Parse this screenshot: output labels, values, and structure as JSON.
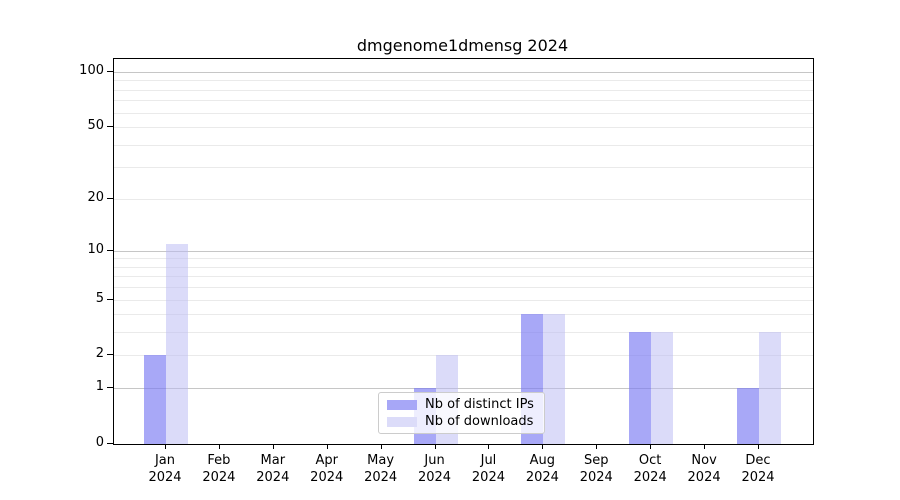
{
  "chart_data": {
    "type": "bar",
    "title": "dmgenome1dmensg 2024",
    "year_label": "2024",
    "categories": [
      "Jan",
      "Feb",
      "Mar",
      "Apr",
      "May",
      "Jun",
      "Jul",
      "Aug",
      "Sep",
      "Oct",
      "Nov",
      "Dec"
    ],
    "series": [
      {
        "name": "Nb of distinct IPs",
        "values": [
          2,
          0,
          0,
          0,
          0,
          1,
          0,
          4,
          0,
          3,
          0,
          1
        ]
      },
      {
        "name": "Nb of downloads",
        "values": [
          11,
          0,
          0,
          0,
          0,
          2,
          0,
          4,
          0,
          3,
          0,
          3
        ]
      }
    ],
    "y_scale": "log1p",
    "ylim": [
      0,
      118
    ],
    "yticks": [
      100,
      50,
      20,
      10,
      5,
      2,
      1,
      0
    ],
    "grid": {
      "major": [
        1,
        10,
        100
      ],
      "minor": [
        2,
        3,
        4,
        5,
        6,
        7,
        8,
        9,
        20,
        30,
        40,
        50,
        60,
        70,
        80,
        90
      ]
    },
    "legend_position": "lower center",
    "colors": {
      "bar_distinct_ips": "rgba(122,122,243,0.65)",
      "bar_downloads": "rgba(184,184,243,0.5)",
      "legend_swatch_ips": "#a7a7f7",
      "legend_swatch_downloads": "#dcdcf9",
      "grid_major": "#c6c6c6",
      "grid_minor": "#eaeaea",
      "axis": "#000000",
      "text": "#000000"
    }
  }
}
